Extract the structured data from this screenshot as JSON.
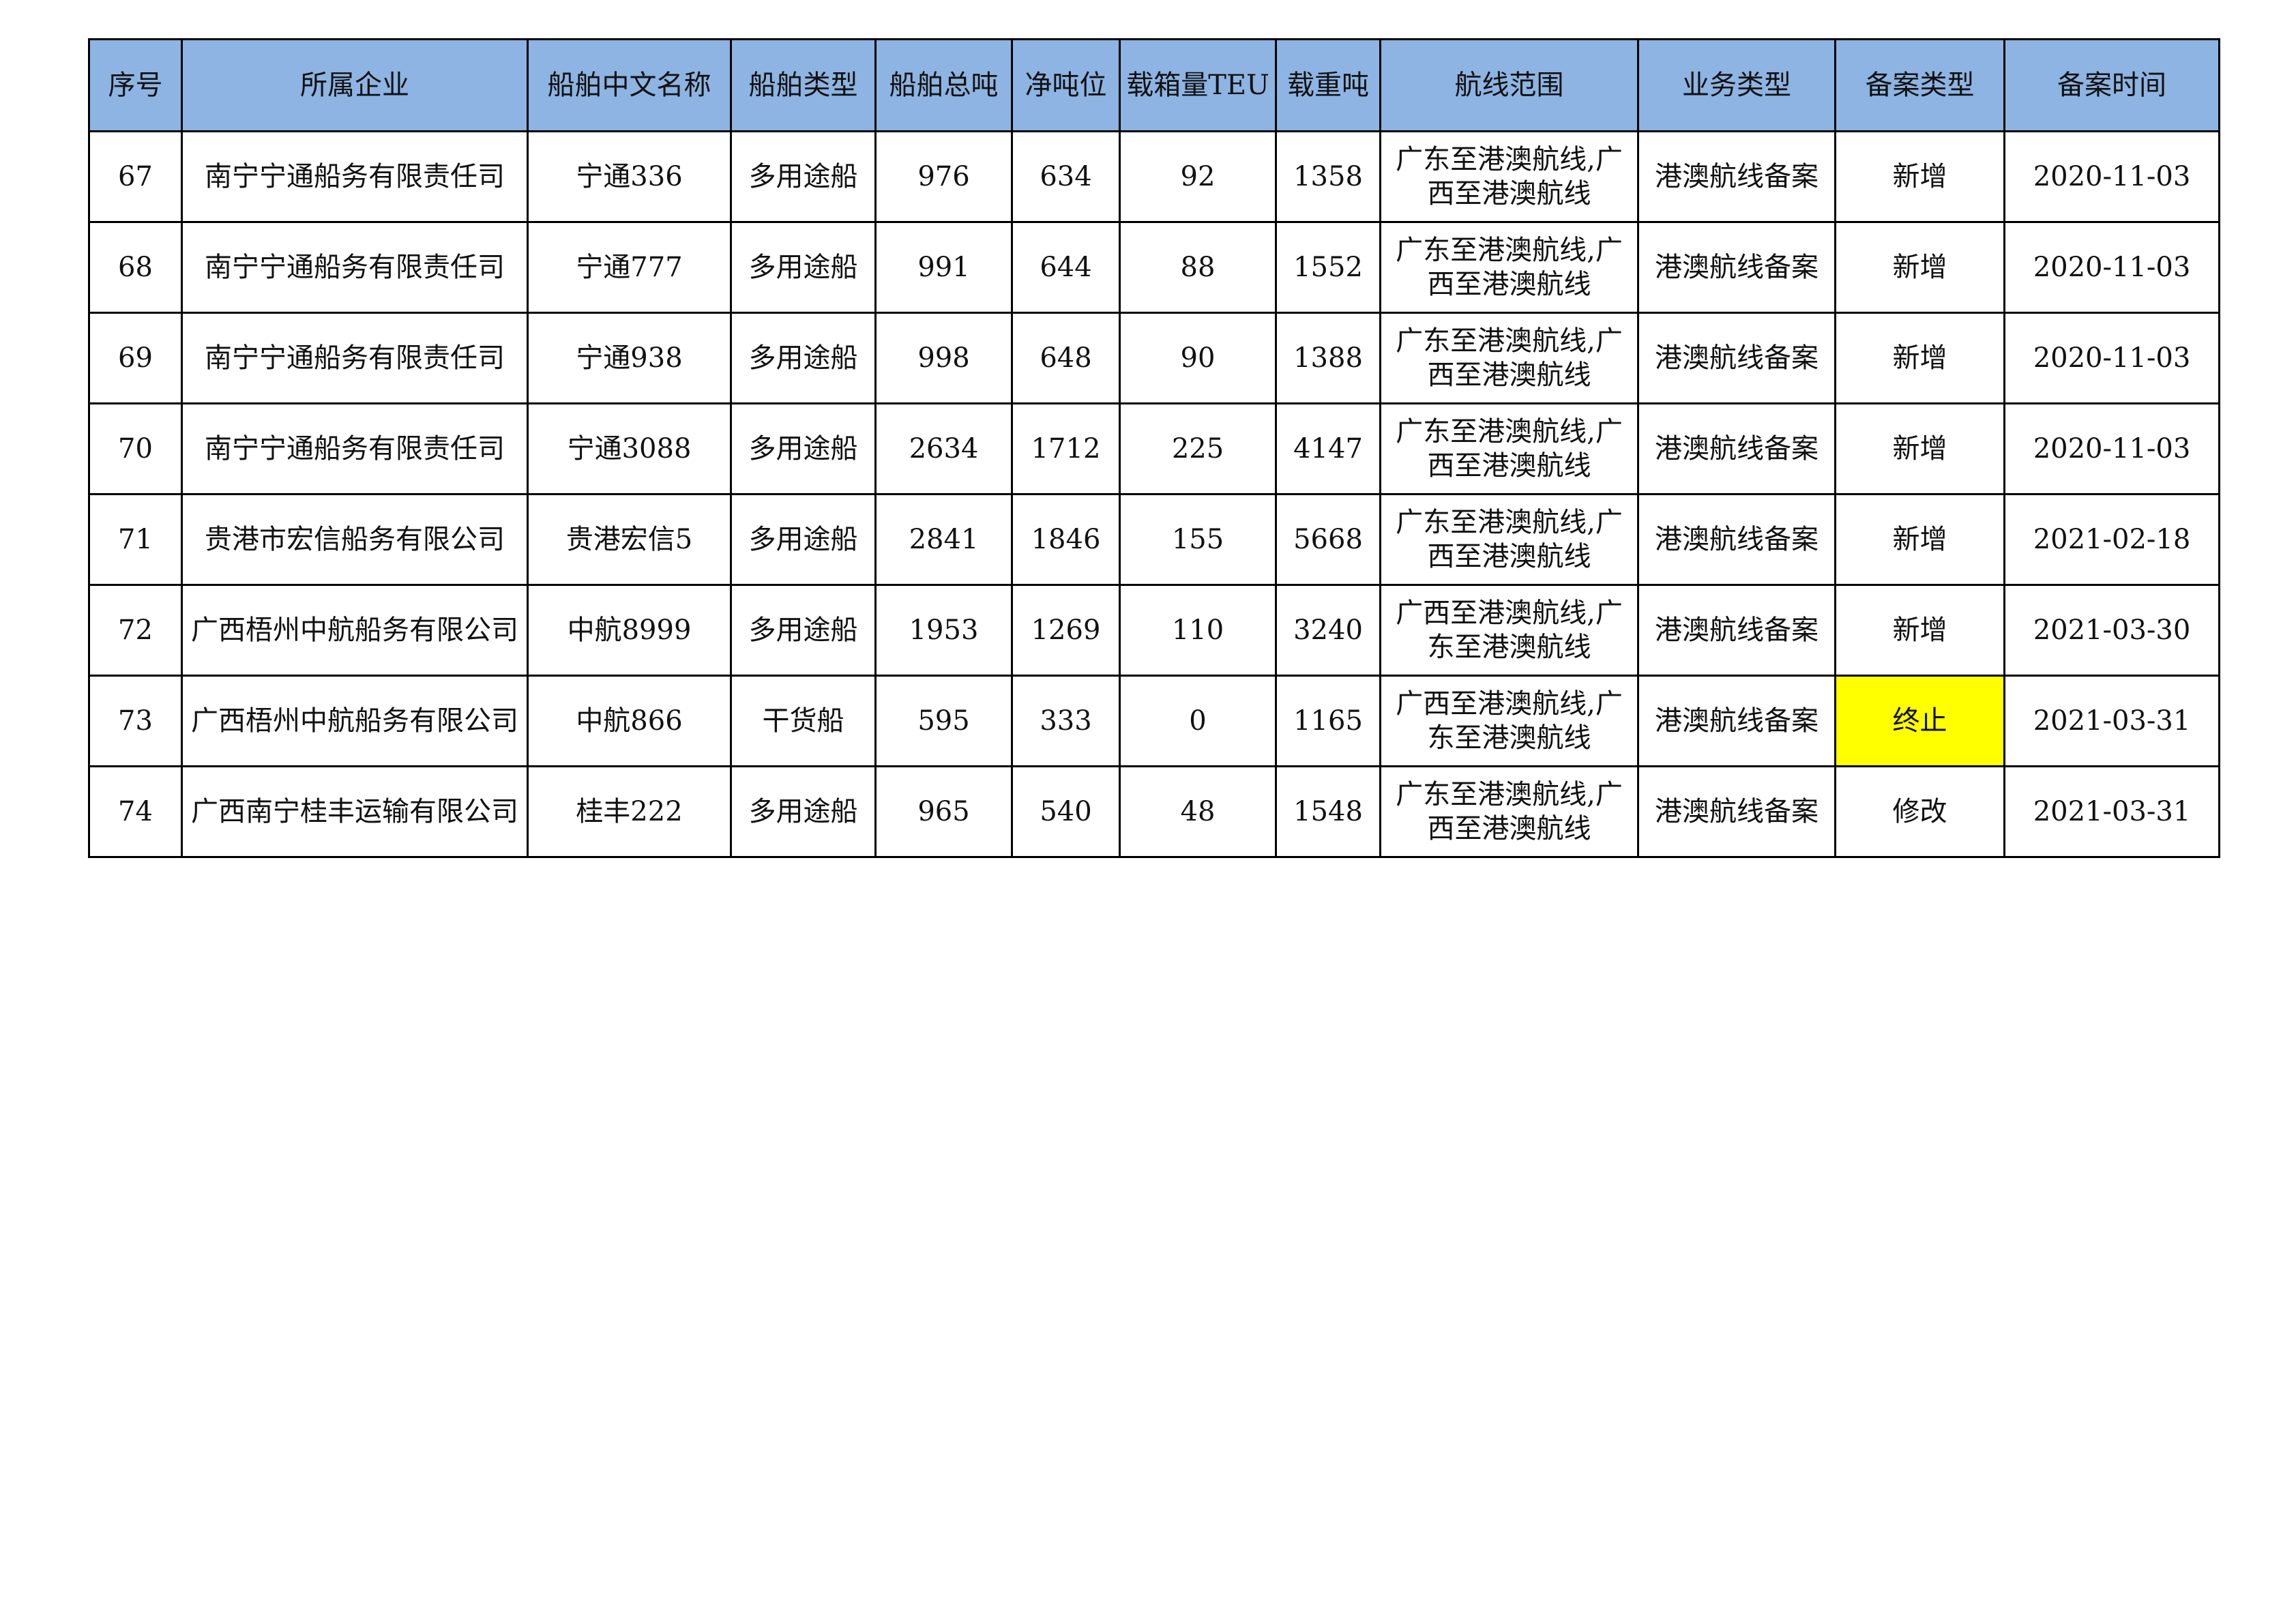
{
  "table": {
    "headers": [
      "序号",
      "所属企业",
      "船舶中文名称",
      "船舶类型",
      "船舶总吨",
      "净吨位",
      "载箱量TEU",
      "载重吨",
      "航线范围",
      "业务类型",
      "备案类型",
      "备案时间"
    ],
    "rows": [
      [
        "67",
        "南宁宁通船务有限责任司",
        "宁通336",
        "多用途船",
        "976",
        "634",
        "92",
        "1358",
        "广东至港澳航线,广西至港澳航线",
        "港澳航线备案",
        "新增",
        "2020-11-03"
      ],
      [
        "68",
        "南宁宁通船务有限责任司",
        "宁通777",
        "多用途船",
        "991",
        "644",
        "88",
        "1552",
        "广东至港澳航线,广西至港澳航线",
        "港澳航线备案",
        "新增",
        "2020-11-03"
      ],
      [
        "69",
        "南宁宁通船务有限责任司",
        "宁通938",
        "多用途船",
        "998",
        "648",
        "90",
        "1388",
        "广东至港澳航线,广西至港澳航线",
        "港澳航线备案",
        "新增",
        "2020-11-03"
      ],
      [
        "70",
        "南宁宁通船务有限责任司",
        "宁通3088",
        "多用途船",
        "2634",
        "1712",
        "225",
        "4147",
        "广东至港澳航线,广西至港澳航线",
        "港澳航线备案",
        "新增",
        "2020-11-03"
      ],
      [
        "71",
        "贵港市宏信船务有限公司",
        "贵港宏信5",
        "多用途船",
        "2841",
        "1846",
        "155",
        "5668",
        "广东至港澳航线,广西至港澳航线",
        "港澳航线备案",
        "新增",
        "2021-02-18"
      ],
      [
        "72",
        "广西梧州中航船务有限公司",
        "中航8999",
        "多用途船",
        "1953",
        "1269",
        "110",
        "3240",
        "广西至港澳航线,广东至港澳航线",
        "港澳航线备案",
        "新增",
        "2021-03-30"
      ],
      [
        "73",
        "广西梧州中航船务有限公司",
        "中航866",
        "干货船",
        "595",
        "333",
        "0",
        "1165",
        "广西至港澳航线,广东至港澳航线",
        "港澳航线备案",
        "终止",
        "2021-03-31"
      ],
      [
        "74",
        "广西南宁桂丰运输有限公司",
        "桂丰222",
        "多用途船",
        "965",
        "540",
        "48",
        "1548",
        "广东至港澳航线,广西至港澳航线",
        "港澳航线备案",
        "修改",
        "2021-03-31"
      ]
    ],
    "highlighted_cells": [
      {
        "row": 6,
        "col": 10,
        "color": "#ffff00"
      }
    ],
    "header_color": "#8db4e2"
  }
}
